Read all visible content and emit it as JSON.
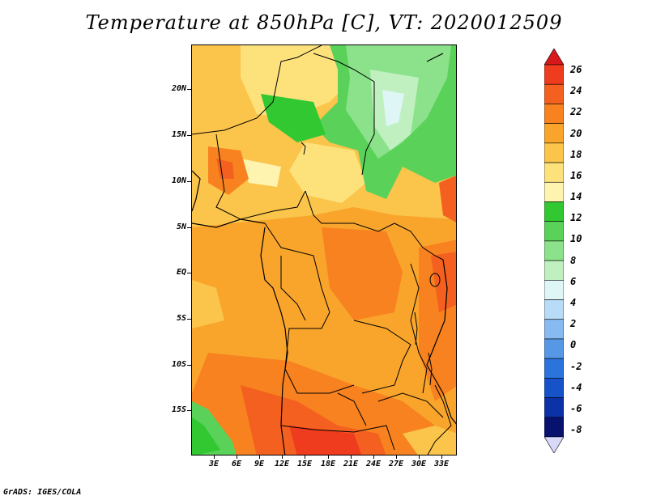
{
  "title": "Temperature at 850hPa [C], VT: 2020012509",
  "credit": "GrADS: IGES/COLA",
  "map": {
    "latitude_labels": [
      "20N",
      "15N",
      "10N",
      "5N",
      "EQ",
      "5S",
      "10S",
      "15S"
    ],
    "longitude_labels": [
      "3E",
      "6E",
      "9E",
      "12E",
      "15E",
      "18E",
      "21E",
      "24E",
      "27E",
      "30E",
      "33E"
    ]
  },
  "colorbar": {
    "labels": [
      "26",
      "24",
      "22",
      "20",
      "18",
      "16",
      "14",
      "12",
      "10",
      "8",
      "6",
      "4",
      "2",
      "0",
      "-2",
      "-4",
      "-6",
      "-8"
    ],
    "colors": [
      "#d7191c",
      "#f03c1e",
      "#f4601f",
      "#f7821f",
      "#f9a52c",
      "#fbc44a",
      "#fde27c",
      "#fff3b0",
      "#32c832",
      "#5ad25a",
      "#8be28b",
      "#c0f0c0",
      "#dff6f6",
      "#b8dcf8",
      "#86baf0",
      "#5698e6",
      "#2a74dc",
      "#1652c8",
      "#0c32a8",
      "#06126e",
      "#d8d8f8"
    ]
  }
}
